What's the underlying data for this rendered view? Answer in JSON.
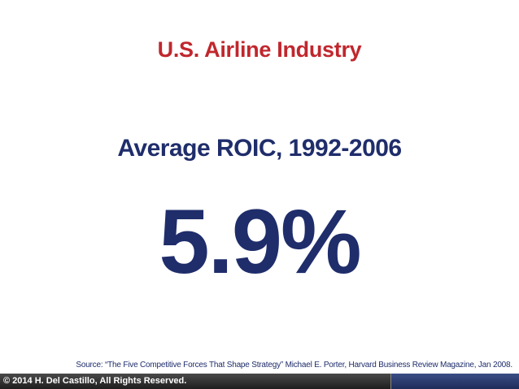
{
  "slide": {
    "title": "U.S. Airline Industry",
    "subtitle": "Average ROIC, 1992-2006",
    "figure": "5.9%",
    "source": "Source: “The Five Competitive Forces That Shape Strategy” Michael E. Porter, Harvard Business Review Magazine, Jan 2008.",
    "footer": "© 2014 H. Del Castillo, All Rights Reserved."
  }
}
